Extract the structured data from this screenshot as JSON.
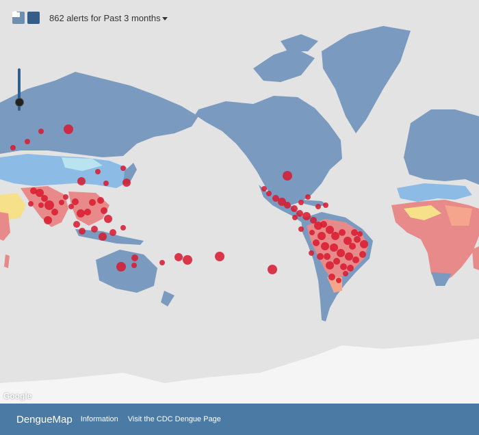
{
  "toolbar": {
    "search_icon": "search-icon",
    "folder_icon": "folder-icon",
    "alert_summary": "862 alerts for Past 3 months"
  },
  "map": {
    "attribution": "Google",
    "colors": {
      "ocean": "#e3e3e3",
      "land": "#7a9bbf",
      "land_light": "#8cbbe6",
      "land_pale": "#b9e3ef",
      "risk_high": "#e98a8a",
      "risk_medium": "#f4a58c",
      "risk_low": "#f6e08a",
      "alert_marker": "#d7192e"
    }
  },
  "footer": {
    "brand": "DengueMap",
    "information_link": "Information",
    "cdc_link": "Visit the CDC Dengue Page"
  }
}
